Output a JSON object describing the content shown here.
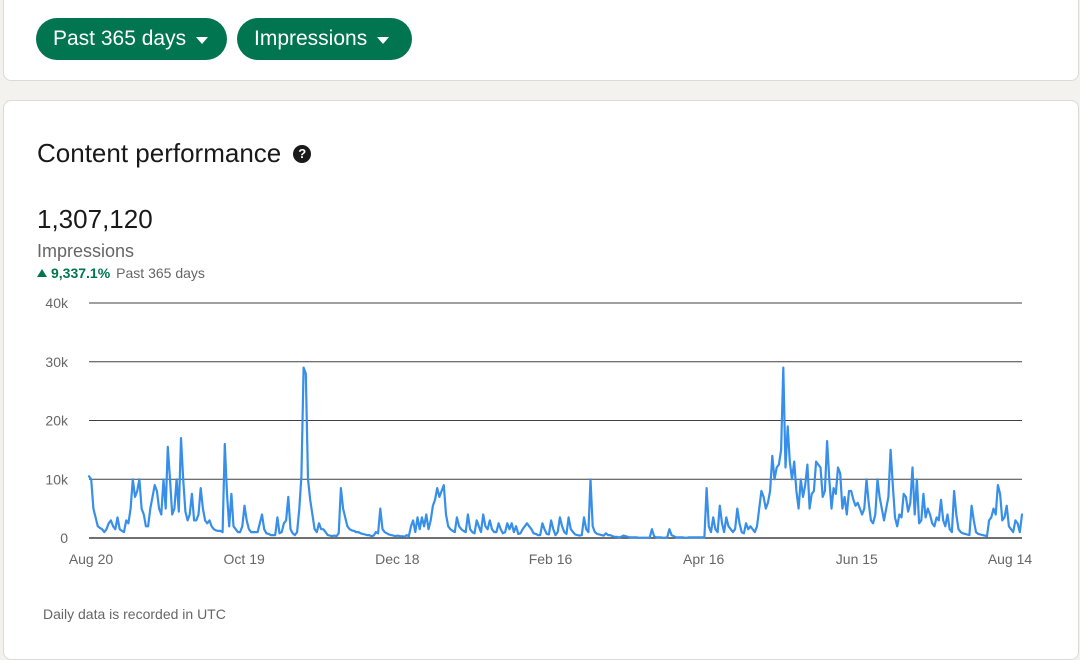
{
  "filters": {
    "range_label": "Past 365 days",
    "metric_label": "Impressions"
  },
  "performance": {
    "title": "Content performance",
    "help_icon": "question-circle-icon",
    "total": "1,307,120",
    "metric": "Impressions",
    "change_percent": "9,337.1%",
    "change_period": "Past 365 days",
    "footnote": "Daily data is recorded in UTC"
  },
  "colors": {
    "accent": "#01754f",
    "line": "#378fe9",
    "grid": "#404040",
    "muted": "#666666"
  },
  "chart_data": {
    "type": "line",
    "x_tick_labels": [
      "Aug 20",
      "Oct 19",
      "Dec 18",
      "Feb 16",
      "Apr 16",
      "Jun 15",
      "Aug 14"
    ],
    "y_tick_labels": [
      "40k",
      "30k",
      "20k",
      "10k",
      "0"
    ],
    "ylim": [
      0,
      40000
    ],
    "grid": true,
    "legend": "none",
    "series": [
      {
        "values": [
          10500,
          10000,
          5000,
          3500,
          2000,
          1700,
          1500,
          1000,
          1500,
          2500,
          3000,
          2000,
          1500,
          3500,
          1500,
          1200,
          1000,
          3000,
          2500,
          5000,
          10000,
          7000,
          8000,
          10000,
          5000,
          4000,
          2000,
          2000,
          5000,
          7000,
          9000,
          8000,
          5000,
          4000,
          10000,
          5000,
          15500,
          10000,
          4000,
          5000,
          10000,
          4500,
          17000,
          10000,
          4500,
          3000,
          4000,
          7500,
          3000,
          3000,
          4000,
          8500,
          5000,
          3000,
          2500,
          3000,
          2000,
          1500,
          1300,
          1200,
          1200,
          1000,
          16000,
          7500,
          2000,
          7500,
          2000,
          1500,
          1000,
          1000,
          2000,
          5500,
          3000,
          1500,
          1000,
          1000,
          1000,
          1000,
          2500,
          4000,
          1500,
          800,
          700,
          500,
          500,
          500,
          3500,
          800,
          1000,
          2500,
          3000,
          7000,
          1500,
          800,
          500,
          1000,
          5000,
          10500,
          29000,
          28000,
          10000,
          6500,
          4000,
          1500,
          1000,
          2500,
          1500,
          1500,
          1000,
          500,
          400,
          300,
          400,
          300,
          800,
          8500,
          5000,
          3500,
          2000,
          1500,
          1300,
          1200,
          1000,
          1000,
          800,
          700,
          600,
          500,
          500,
          300,
          400,
          1000,
          800,
          5000,
          1500,
          1000,
          800,
          600,
          500,
          400,
          300,
          400,
          300,
          300,
          200,
          500,
          300,
          2000,
          3000,
          1000,
          3500,
          1500,
          3500,
          2000,
          4000,
          1500,
          3000,
          5500,
          6500,
          8500,
          7000,
          8000,
          9000,
          4000,
          2000,
          1500,
          1200,
          1000,
          3500,
          2000,
          1500,
          1200,
          1000,
          4000,
          1500,
          1000,
          800,
          3000,
          2000,
          1000,
          4000,
          2000,
          1500,
          3000,
          1500,
          1000,
          1000,
          2500,
          1500,
          800,
          1000,
          2500,
          1500,
          2500,
          1000,
          2000,
          700,
          800,
          1500,
          2000,
          2500,
          2000,
          1500,
          800,
          700,
          500,
          500,
          2500,
          1500,
          700,
          600,
          3000,
          1500,
          500,
          1000,
          3500,
          2000,
          1000,
          700,
          3500,
          1500,
          1000,
          600,
          500,
          400,
          500,
          3500,
          1500,
          1000,
          10000,
          2000,
          1000,
          700,
          600,
          500,
          400,
          800,
          500,
          500,
          300,
          200,
          200,
          100,
          200,
          400,
          300,
          200,
          100,
          100,
          100,
          100,
          50,
          50,
          50,
          50,
          50,
          50,
          1500,
          300,
          100,
          100,
          100,
          50,
          50,
          100,
          1500,
          500,
          300,
          100,
          100,
          100,
          100,
          50,
          50,
          100,
          100,
          100,
          100,
          100,
          100,
          100,
          100,
          8500,
          2000,
          1000,
          3500,
          1500,
          1000,
          5500,
          2500,
          1000,
          3500,
          2000,
          1500,
          1000,
          1500,
          5000,
          2500,
          1000,
          800,
          2500,
          1500,
          2000,
          1500,
          1000,
          2000,
          5000,
          8000,
          7000,
          5000,
          6000,
          8000,
          14000,
          10000,
          12000,
          12500,
          15000,
          29000,
          12000,
          19000,
          13000,
          10000,
          13000,
          8000,
          5000,
          10000,
          7000,
          9000,
          12500,
          5000,
          7500,
          8000,
          13000,
          12500,
          12000,
          7000,
          8000,
          16500,
          10000,
          5000,
          8500,
          7500,
          12000,
          11000,
          5000,
          7000,
          4000,
          8000,
          8000,
          6500,
          5500,
          6000,
          5000,
          4000,
          5000,
          10000,
          6000,
          3000,
          2500,
          4000,
          10000,
          7000,
          5000,
          3000,
          5000,
          7000,
          15000,
          9000,
          3500,
          2000,
          4000,
          3500,
          7500,
          7000,
          4500,
          6000,
          12000,
          4000,
          10000,
          2500,
          3000,
          7500,
          3500,
          5000,
          4000,
          2500,
          2000,
          3500,
          3000,
          6500,
          3000,
          2000,
          4000,
          1500,
          1000,
          8000,
          4000,
          1500,
          1000,
          800,
          700,
          600,
          500,
          5500,
          3000,
          1000,
          700,
          600,
          500,
          400,
          300,
          3000,
          3500,
          5000,
          4000,
          9000,
          7500,
          3000,
          3500,
          5500,
          2000,
          1500,
          1000,
          3000,
          2500,
          1000,
          4000
        ]
      }
    ]
  }
}
